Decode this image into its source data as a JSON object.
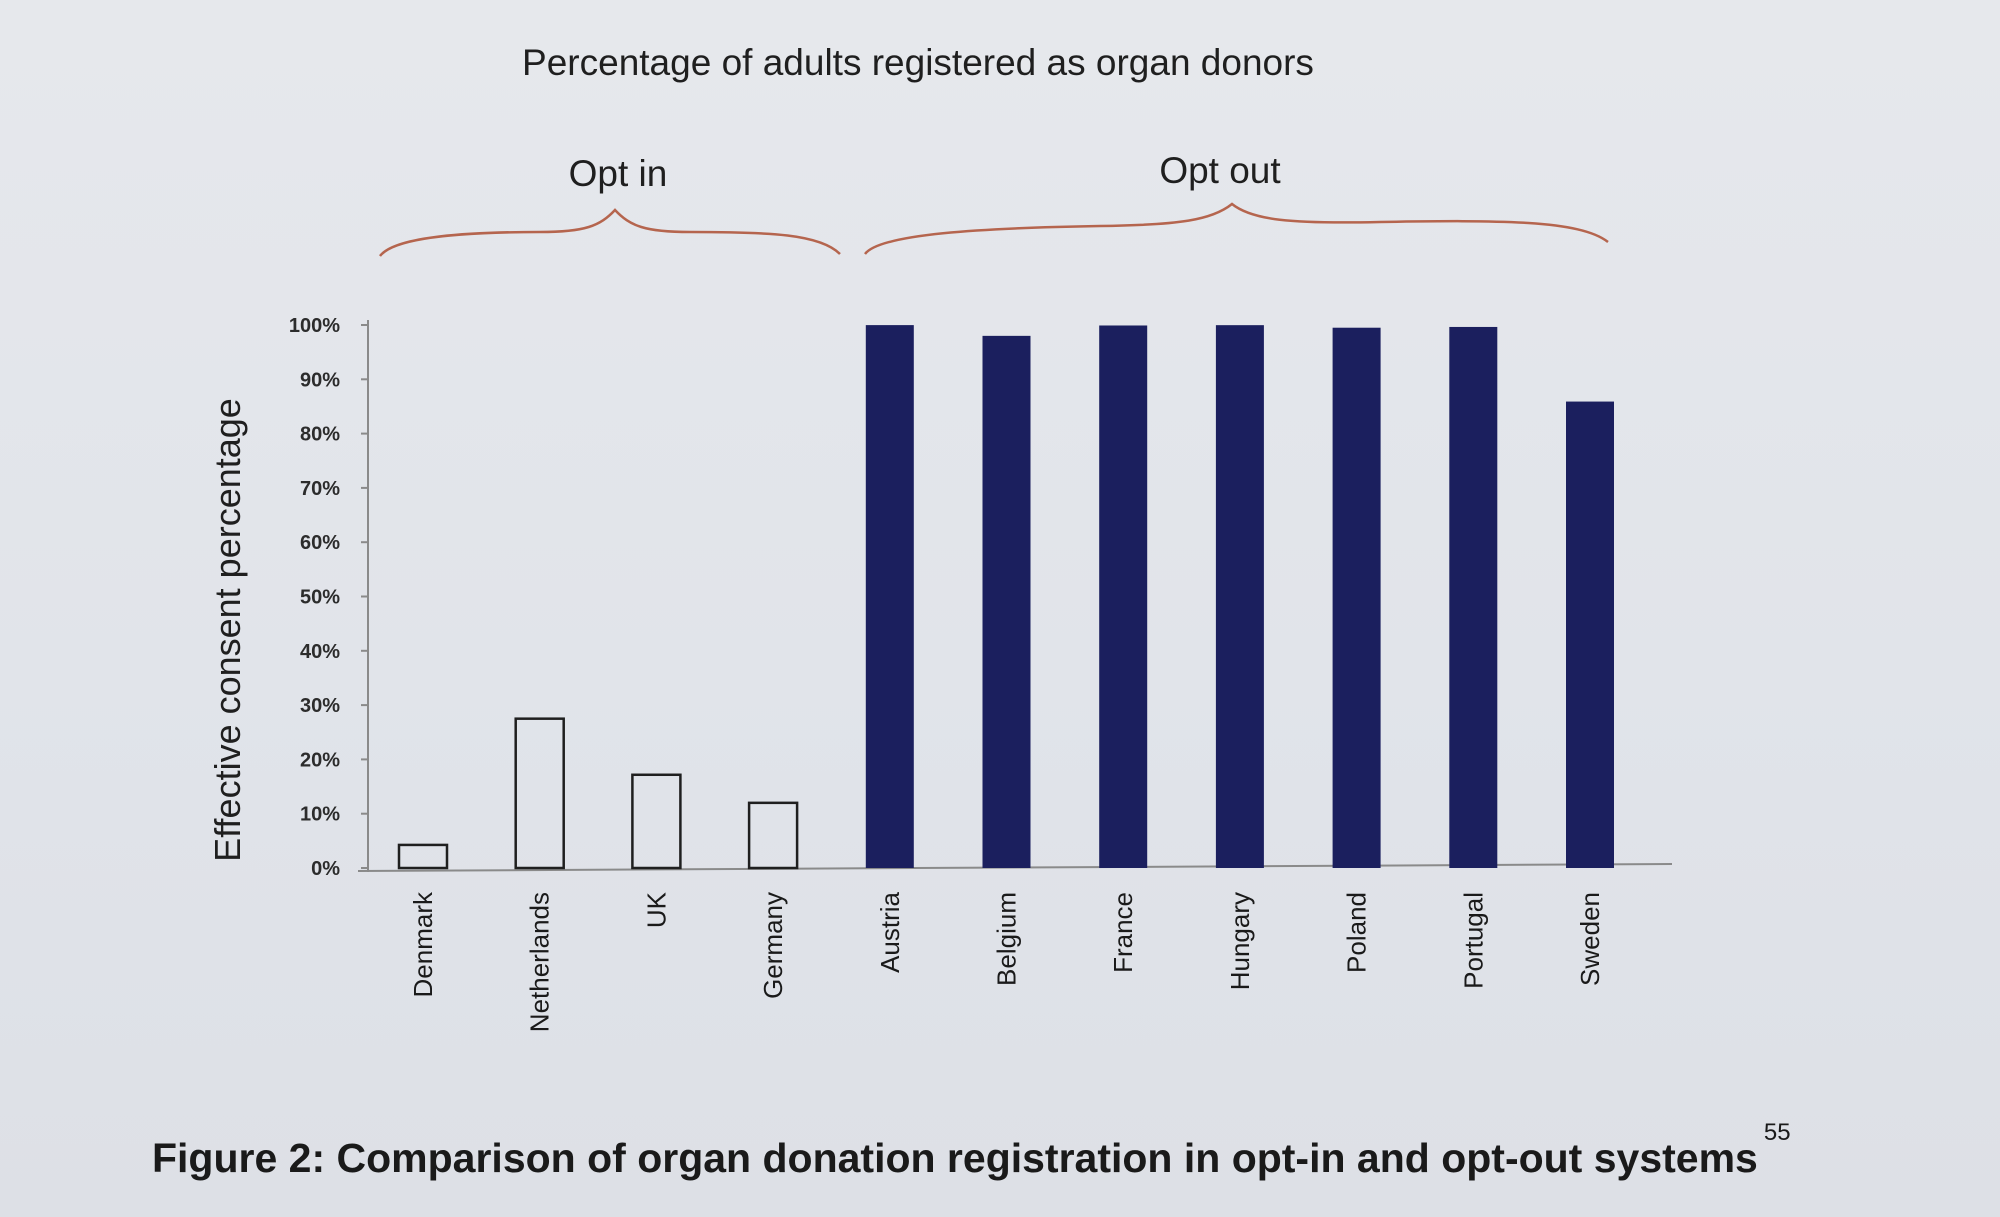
{
  "chart_data": {
    "type": "bar",
    "title": "Percentage of adults registered as organ donors",
    "ylabel": "Effective consent percentage",
    "xlabel": "",
    "ylim": [
      0,
      100
    ],
    "yticks": [
      "0%",
      "10%",
      "20%",
      "30%",
      "40%",
      "50%",
      "60%",
      "70%",
      "80%",
      "90%",
      "100%"
    ],
    "categories": [
      "Denmark",
      "Netherlands",
      "UK",
      "Germany",
      "Austria",
      "Belgium",
      "France",
      "Hungary",
      "Poland",
      "Portugal",
      "Sweden"
    ],
    "values": [
      4.25,
      27.5,
      17.17,
      12,
      99.98,
      98,
      99.91,
      99.97,
      99.5,
      99.64,
      85.9
    ],
    "groups": [
      {
        "label": "Opt in",
        "categories": [
          "Denmark",
          "Netherlands",
          "UK",
          "Germany"
        ],
        "fill": "none"
      },
      {
        "label": "Opt out",
        "categories": [
          "Austria",
          "Belgium",
          "France",
          "Hungary",
          "Poland",
          "Portugal",
          "Sweden"
        ],
        "fill": "solid"
      }
    ],
    "grid": false,
    "legend": "none"
  },
  "caption": {
    "text": "Figure 2: Comparison of organ donation registration in opt-in and opt-out systems",
    "superscript": "55"
  },
  "colors": {
    "opt_out_bar": "#1b1f5e",
    "opt_in_bar_outline": "#1f1f1f",
    "brace": "#b5654e",
    "axis": "#8a8a8a"
  }
}
